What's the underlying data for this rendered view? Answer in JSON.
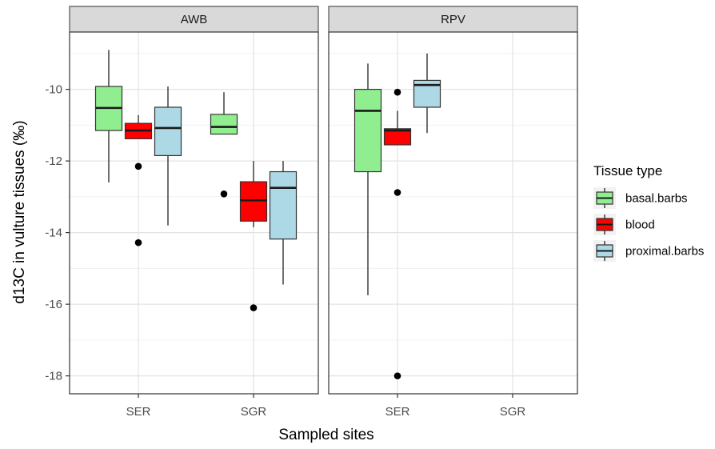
{
  "chart_data": {
    "type": "boxplot",
    "xlabel": "Sampled sites",
    "ylabel": "d13C in vulture tissues (‰)",
    "ylim": [
      -18.5,
      -8.4
    ],
    "yticks": [
      -10,
      -12,
      -14,
      -16,
      -18
    ],
    "categories": [
      "SER",
      "SGR"
    ],
    "legend": {
      "title": "Tissue type",
      "position": "right"
    },
    "series": [
      {
        "name": "basal.barbs",
        "color": "#90EE90"
      },
      {
        "name": "blood",
        "color": "#FF0000"
      },
      {
        "name": "proximal.barbs",
        "color": "#ADD8E6"
      }
    ],
    "panels": [
      {
        "title": "AWB",
        "boxes": [
          {
            "site": "SER",
            "series": "basal.barbs",
            "q1": -11.15,
            "median": -10.52,
            "q3": -9.92,
            "whisker_low": -12.6,
            "whisker_high": -8.9,
            "outliers": []
          },
          {
            "site": "SER",
            "series": "blood",
            "q1": -11.38,
            "median": -11.15,
            "q3": -10.95,
            "whisker_low": -11.38,
            "whisker_high": -10.72,
            "outliers": [
              -12.15,
              -14.28
            ]
          },
          {
            "site": "SER",
            "series": "proximal.barbs",
            "q1": -11.85,
            "median": -11.08,
            "q3": -10.5,
            "whisker_low": -13.8,
            "whisker_high": -9.92,
            "outliers": []
          },
          {
            "site": "SGR",
            "series": "basal.barbs",
            "q1": -11.25,
            "median": -11.05,
            "q3": -10.7,
            "whisker_low": -11.25,
            "whisker_high": -10.08,
            "outliers": [
              -12.92
            ]
          },
          {
            "site": "SGR",
            "series": "blood",
            "q1": -13.68,
            "median": -13.1,
            "q3": -12.58,
            "whisker_low": -13.85,
            "whisker_high": -12.0,
            "outliers": [
              -16.1
            ]
          },
          {
            "site": "SGR",
            "series": "proximal.barbs",
            "q1": -14.18,
            "median": -12.75,
            "q3": -12.3,
            "whisker_low": -15.45,
            "whisker_high": -12.0,
            "outliers": []
          }
        ]
      },
      {
        "title": "RPV",
        "boxes": [
          {
            "site": "SER",
            "series": "basal.barbs",
            "q1": -12.3,
            "median": -10.6,
            "q3": -10.0,
            "whisker_low": -15.75,
            "whisker_high": -9.28,
            "outliers": []
          },
          {
            "site": "SER",
            "series": "blood",
            "q1": -11.55,
            "median": -11.15,
            "q3": -11.1,
            "whisker_low": -11.55,
            "whisker_high": -10.6,
            "outliers": [
              -10.08,
              -12.88,
              -18.0
            ]
          },
          {
            "site": "SER",
            "series": "proximal.barbs",
            "q1": -10.5,
            "median": -9.88,
            "q3": -9.75,
            "whisker_low": -11.22,
            "whisker_high": -9.0,
            "outliers": []
          }
        ]
      }
    ]
  }
}
